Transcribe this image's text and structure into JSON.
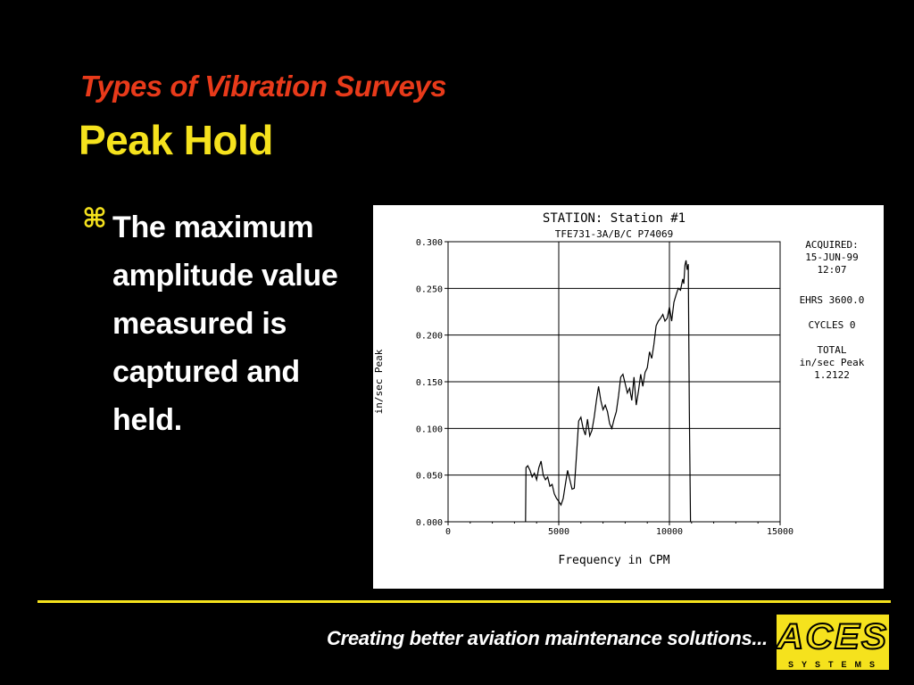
{
  "slide": {
    "subtitle": "Types of Vibration Surveys",
    "title": "Peak Hold",
    "bullet_icon": "⌘",
    "bullet_text": "The maximum amplitude value measured is captured and held."
  },
  "footer": {
    "tagline": "Creating better aviation maintenance solutions...",
    "logo_word": "ACES",
    "logo_sub": "SYSTEMS"
  },
  "colors": {
    "background": "#000000",
    "subtitle": "#e83a1a",
    "title": "#f5e21d",
    "bullet_text": "#ffffff",
    "divider": "#f5e21d"
  },
  "chart_data": {
    "type": "line",
    "title": "STATION: Station #1",
    "subtitle": "TFE731-3A/B/C P74069",
    "xlabel": "Frequency in CPM",
    "ylabel": "in/sec Peak",
    "xlim": [
      0,
      15000
    ],
    "ylim": [
      0,
      0.3
    ],
    "x_ticks": [
      0,
      5000,
      10000,
      15000
    ],
    "y_ticks": [
      "0.000",
      "0.050",
      "0.100",
      "0.150",
      "0.200",
      "0.250",
      "0.300"
    ],
    "grid": true,
    "annotations": [
      "ACQUIRED:",
      "15-JUN-99",
      "12:07",
      "EHRS 3600.0",
      "CYCLES 0",
      "TOTAL",
      "in/sec Peak",
      "1.2122"
    ],
    "series": [
      {
        "x": [
          3500,
          3520,
          3600,
          3700,
          3800,
          3900,
          4000,
          4100,
          4200,
          4300,
          4400,
          4500,
          4600,
          4700,
          4800,
          4900,
          5000,
          5100,
          5200,
          5300,
          5400,
          5500,
          5600,
          5700,
          5800,
          5900,
          6000,
          6100,
          6200,
          6300,
          6400,
          6500,
          6600,
          6700,
          6800,
          6900,
          7000,
          7100,
          7200,
          7300,
          7400,
          7500,
          7600,
          7700,
          7800,
          7900,
          8000,
          8100,
          8200,
          8300,
          8400,
          8500,
          8600,
          8700,
          8800,
          8900,
          9000,
          9100,
          9200,
          9300,
          9400,
          9500,
          9600,
          9700,
          9800,
          9900,
          10000,
          10100,
          10200,
          10300,
          10400,
          10500,
          10600,
          10650,
          10700,
          10750,
          10800,
          10850,
          10900,
          10950
        ],
        "y": [
          0,
          0.058,
          0.06,
          0.055,
          0.048,
          0.052,
          0.045,
          0.058,
          0.065,
          0.05,
          0.045,
          0.048,
          0.038,
          0.04,
          0.03,
          0.025,
          0.022,
          0.018,
          0.025,
          0.04,
          0.055,
          0.045,
          0.035,
          0.036,
          0.07,
          0.108,
          0.112,
          0.1,
          0.093,
          0.11,
          0.092,
          0.098,
          0.112,
          0.13,
          0.145,
          0.13,
          0.12,
          0.125,
          0.118,
          0.105,
          0.1,
          0.11,
          0.118,
          0.135,
          0.155,
          0.158,
          0.148,
          0.138,
          0.143,
          0.13,
          0.155,
          0.125,
          0.14,
          0.158,
          0.145,
          0.16,
          0.165,
          0.182,
          0.175,
          0.19,
          0.21,
          0.215,
          0.218,
          0.222,
          0.215,
          0.218,
          0.23,
          0.215,
          0.235,
          0.243,
          0.25,
          0.248,
          0.26,
          0.255,
          0.275,
          0.28,
          0.27,
          0.276,
          0.12,
          0
        ]
      }
    ]
  }
}
